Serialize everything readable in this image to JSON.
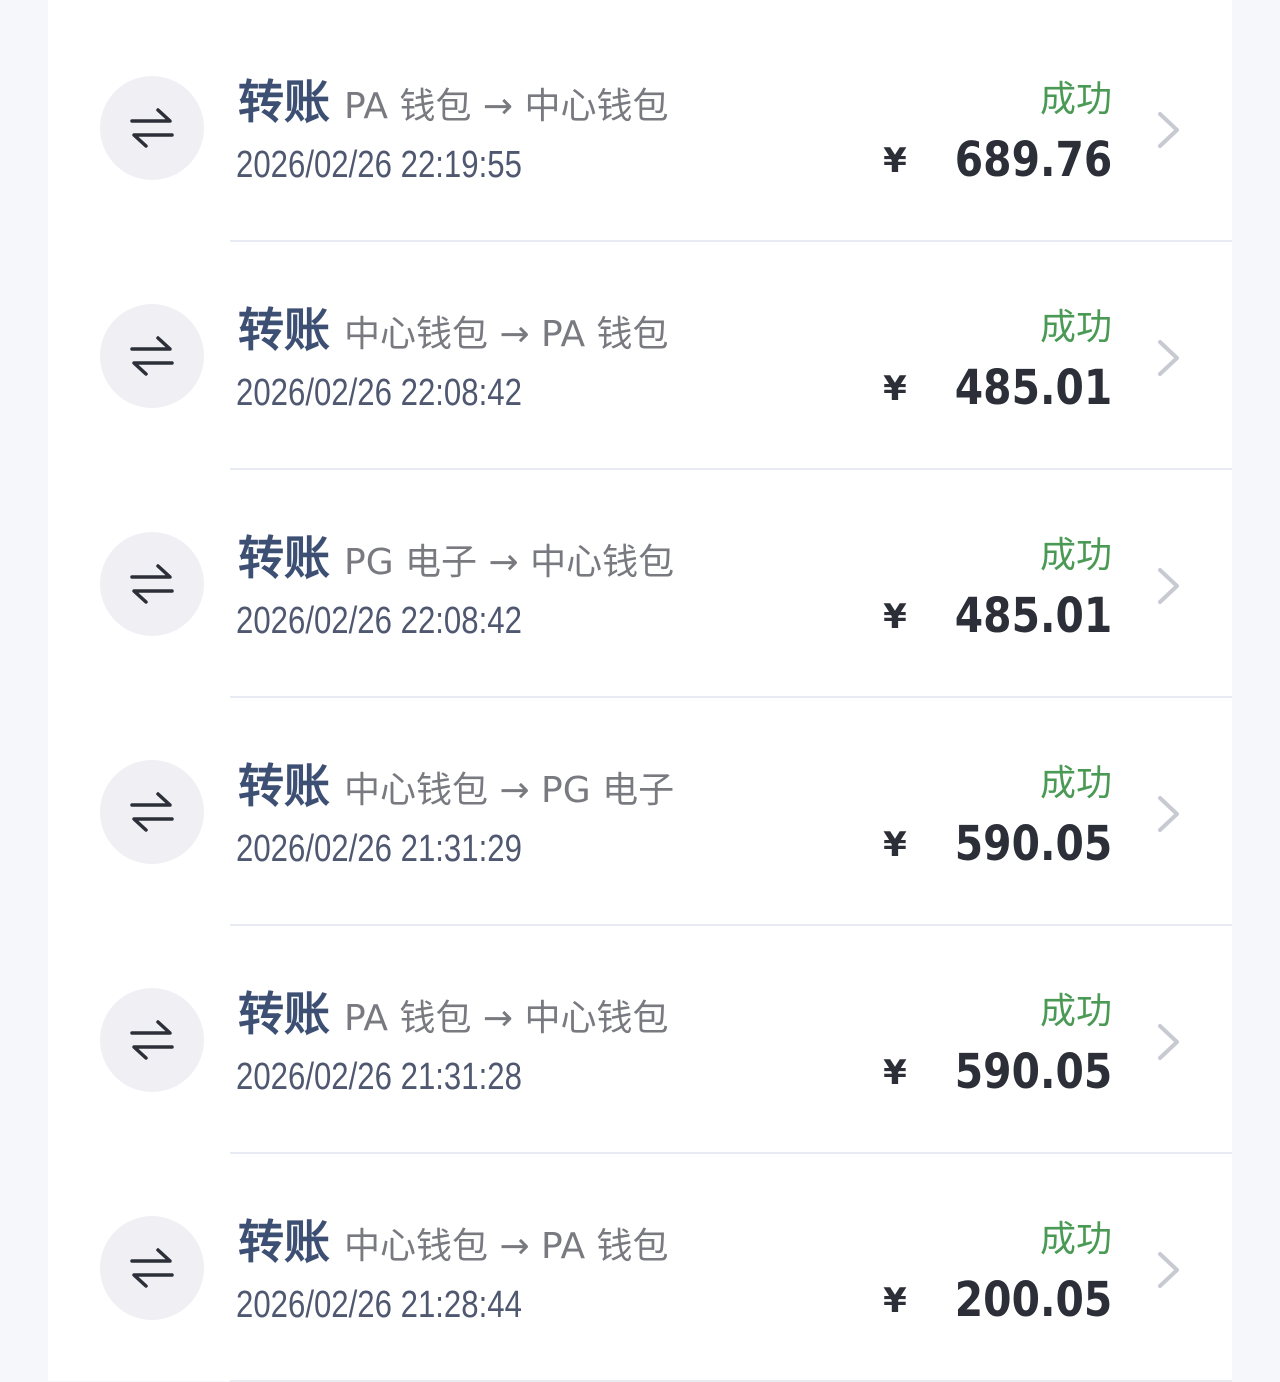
{
  "colors": {
    "accent": "#3d4f73",
    "success": "#4a9a55",
    "amount": "#2c2f38"
  },
  "currency_symbol": "¥",
  "records": [
    {
      "type": "转账",
      "route": "PA 钱包 → 中心钱包",
      "time": "2026/02/26 22:19:55",
      "status": "成功",
      "amount": "689.76",
      "icon": "transfer-icon"
    },
    {
      "type": "转账",
      "route": "中心钱包 → PA 钱包",
      "time": "2026/02/26 22:08:42",
      "status": "成功",
      "amount": "485.01",
      "icon": "transfer-icon"
    },
    {
      "type": "转账",
      "route": "PG 电子 → 中心钱包",
      "time": "2026/02/26 22:08:42",
      "status": "成功",
      "amount": "485.01",
      "icon": "transfer-icon"
    },
    {
      "type": "转账",
      "route": "中心钱包 → PG 电子",
      "time": "2026/02/26 21:31:29",
      "status": "成功",
      "amount": "590.05",
      "icon": "transfer-icon"
    },
    {
      "type": "转账",
      "route": "PA 钱包 → 中心钱包",
      "time": "2026/02/26 21:31:28",
      "status": "成功",
      "amount": "590.05",
      "icon": "transfer-icon"
    },
    {
      "type": "转账",
      "route": "中心钱包 → PA 钱包",
      "time": "2026/02/26 21:28:44",
      "status": "成功",
      "amount": "200.05",
      "icon": "transfer-icon"
    }
  ]
}
